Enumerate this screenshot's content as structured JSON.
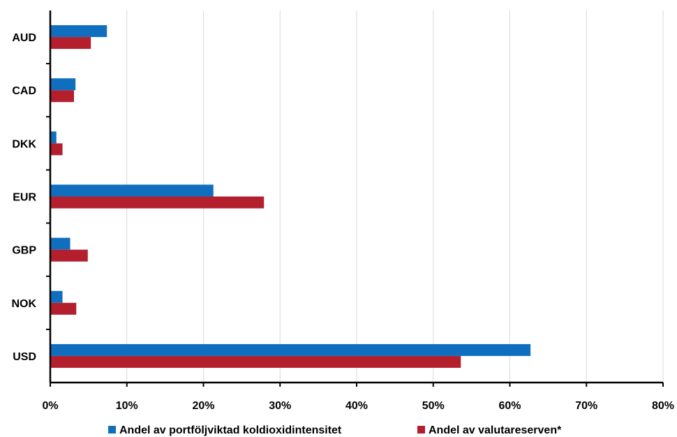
{
  "chart_data": {
    "type": "bar",
    "orientation": "horizontal",
    "categories": [
      "AUD",
      "CAD",
      "DKK",
      "EUR",
      "GBP",
      "NOK",
      "USD"
    ],
    "series": [
      {
        "name": "Andel av portföljviktad koldioxidintensitet",
        "color": "#0f6fbe",
        "values": [
          7.4,
          3.3,
          0.8,
          21.3,
          2.6,
          1.6,
          62.7
        ]
      },
      {
        "name": "Andel av valutareserven*",
        "color": "#b41f2e",
        "values": [
          5.3,
          3.1,
          1.6,
          27.9,
          4.9,
          3.4,
          53.6
        ]
      }
    ],
    "xlim": [
      0,
      80
    ],
    "xticks": [
      "0%",
      "10%",
      "20%",
      "30%",
      "40%",
      "50%",
      "60%",
      "70%",
      "80%"
    ],
    "grid": true,
    "legend_position": "bottom",
    "title": "",
    "xlabel": "",
    "ylabel": ""
  }
}
